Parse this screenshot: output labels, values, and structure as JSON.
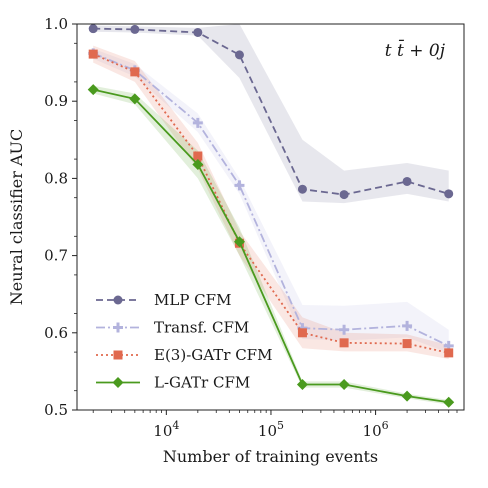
{
  "chart_data": {
    "type": "line",
    "xscale": "log",
    "xlim": [
      1400,
      7000000
    ],
    "ylim": [
      0.5,
      1.0
    ],
    "xlabel": "Number of training events",
    "ylabel": "Neural classifier AUC",
    "annotation": "t t̄ + 0j",
    "legend_position": "lower-left",
    "grid": false,
    "x_ticks": [
      {
        "value": 10000,
        "label": "10^4"
      },
      {
        "value": 100000,
        "label": "10^5"
      },
      {
        "value": 1000000,
        "label": "10^6"
      }
    ],
    "y_ticks": [
      0.5,
      0.6,
      0.7,
      0.8,
      0.9,
      1.0
    ],
    "y_tick_labels": [
      "0.5",
      "0.6",
      "0.7",
      "0.8",
      "0.9",
      "1.0"
    ],
    "x": [
      2000,
      5000,
      20000,
      50000,
      200000,
      500000,
      2000000,
      5000000
    ],
    "series": [
      {
        "name": "MLP CFM",
        "color": "#6b6891",
        "marker": "circle",
        "linestyle": "dashed",
        "values": [
          0.994,
          0.993,
          0.989,
          0.96,
          0.786,
          0.779,
          0.796,
          0.78
        ],
        "band_low": [
          0.99,
          0.989,
          0.985,
          0.93,
          0.77,
          0.768,
          0.78,
          0.77
        ],
        "band_high": [
          0.998,
          0.997,
          0.995,
          1.0,
          0.85,
          0.81,
          0.82,
          0.81
        ]
      },
      {
        "name": "Transf. CFM",
        "color": "#b3b3dd",
        "marker": "plus",
        "linestyle": "dashdot",
        "values": [
          0.962,
          0.94,
          0.872,
          0.791,
          0.606,
          0.604,
          0.609,
          0.583
        ],
        "band_low": [
          0.955,
          0.932,
          0.86,
          0.78,
          0.592,
          0.59,
          0.594,
          0.574
        ],
        "band_high": [
          0.968,
          0.948,
          0.884,
          0.8,
          0.636,
          0.635,
          0.64,
          0.604
        ]
      },
      {
        "name": "E(3)-GATr CFM",
        "color": "#e0694f",
        "marker": "square",
        "linestyle": "dotted",
        "values": [
          0.961,
          0.938,
          0.829,
          0.716,
          0.6,
          0.587,
          0.586,
          0.574
        ],
        "band_low": [
          0.95,
          0.925,
          0.812,
          0.7,
          0.58,
          0.576,
          0.576,
          0.566
        ],
        "band_high": [
          0.972,
          0.952,
          0.846,
          0.732,
          0.62,
          0.6,
          0.598,
          0.584
        ]
      },
      {
        "name": "L-GATr CFM",
        "color": "#4a9a1e",
        "marker": "diamond",
        "linestyle": "solid",
        "values": [
          0.915,
          0.903,
          0.818,
          0.718,
          0.533,
          0.533,
          0.518,
          0.51
        ],
        "band_low": [
          0.91,
          0.896,
          0.8,
          0.7,
          0.529,
          0.529,
          0.515,
          0.507
        ],
        "band_high": [
          0.92,
          0.91,
          0.836,
          0.736,
          0.537,
          0.537,
          0.521,
          0.513
        ]
      }
    ]
  }
}
